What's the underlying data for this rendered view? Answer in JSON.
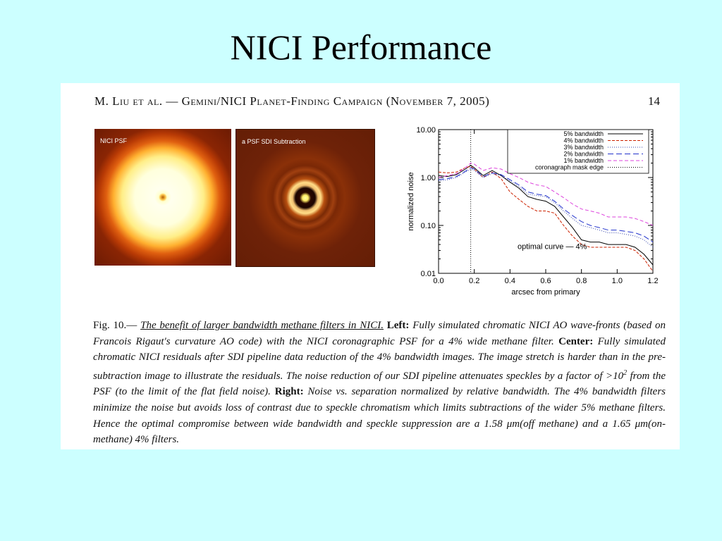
{
  "slide": {
    "title": "NICI Performance"
  },
  "paper": {
    "running_head": "M. Liu et al. — Gemini/NICI Planet-Finding Campaign (November 7, 2005)",
    "page_number": "14"
  },
  "panels": {
    "left_label": "NICI PSF",
    "center_label": "a PSF SDI Subtraction"
  },
  "caption": {
    "fig": "Fig. 10.—",
    "title": "The benefit of larger bandwidth methane filters in NICI.",
    "left_head": "Left:",
    "left_text": "Fully simulated chromatic NICI AO wave-fronts (based on Francois Rigaut's curvature AO code) with the NICI coronagraphic PSF for a 4% wide methane filter.",
    "center_head": "Center:",
    "center_text": "Fully simulated chromatic NICI residuals after SDI pipeline data reduction of the 4% bandwidth images. The image stretch is harder than in the pre-subtraction image to illustrate the residuals. The noise reduction of our SDI pipeline attenuates speckles by a factor of",
    "center_factor_base": ">10",
    "center_factor_exp": "2",
    "center_text_2": "from the PSF (to the limit of the flat field noise).",
    "right_head": "Right:",
    "right_text": "Noise vs. separation normalized by relative bandwidth. The 4% bandwidth filters minimize the noise but avoids loss of contrast due to speckle chromatism which limits subtractions of the wider 5% methane filters. Hence the optimal compromise between wide bandwidth and speckle suppression are a 1.58 μm(off methane) and a 1.65 μm(on-methane) 4% filters."
  },
  "chart_data": {
    "type": "line",
    "xlabel": "arcsec from primary",
    "ylabel": "normalized noise",
    "xlim": [
      0.0,
      1.2
    ],
    "ylim": [
      0.01,
      10.0
    ],
    "yscale": "log",
    "xticks": [
      "0.0",
      "0.2",
      "0.4",
      "0.6",
      "0.8",
      "1.0",
      "1.2"
    ],
    "yticks": [
      {
        "value": 10.0,
        "label": "10.00"
      },
      {
        "value": 1.0,
        "label": "1.00"
      },
      {
        "value": 0.1,
        "label": "0.10"
      },
      {
        "value": 0.01,
        "label": "0.01"
      }
    ],
    "legend_position": "top-right",
    "mask_edge_x": 0.18,
    "annotation": "optimal curve — 4%",
    "x": [
      0.0,
      0.05,
      0.1,
      0.15,
      0.18,
      0.2,
      0.25,
      0.3,
      0.35,
      0.4,
      0.45,
      0.5,
      0.55,
      0.6,
      0.65,
      0.7,
      0.75,
      0.8,
      0.85,
      0.9,
      0.95,
      1.0,
      1.05,
      1.1,
      1.15,
      1.2
    ],
    "series": [
      {
        "name": "5% bandwidth",
        "color": "#000000",
        "dash": "",
        "values": [
          1.1,
          1.05,
          1.15,
          1.5,
          1.8,
          1.6,
          1.1,
          1.4,
          1.1,
          0.8,
          0.6,
          0.4,
          0.35,
          0.32,
          0.25,
          0.15,
          0.09,
          0.05,
          0.045,
          0.045,
          0.04,
          0.04,
          0.04,
          0.035,
          0.025,
          0.015
        ]
      },
      {
        "name": "4% bandwidth",
        "color": "#cc2200",
        "dash": "4,2",
        "values": [
          1.3,
          1.25,
          1.3,
          1.6,
          1.7,
          1.5,
          1.0,
          1.3,
          0.95,
          0.5,
          0.35,
          0.25,
          0.2,
          0.2,
          0.18,
          0.1,
          0.06,
          0.04,
          0.035,
          0.035,
          0.035,
          0.035,
          0.035,
          0.03,
          0.02,
          0.011
        ]
      },
      {
        "name": "3% bandwidth",
        "color": "#3344aa",
        "dash": "1,2",
        "values": [
          0.85,
          0.9,
          1.0,
          1.3,
          1.5,
          1.4,
          1.0,
          1.2,
          1.1,
          0.85,
          0.65,
          0.45,
          0.42,
          0.4,
          0.3,
          0.2,
          0.14,
          0.1,
          0.09,
          0.08,
          0.07,
          0.07,
          0.065,
          0.06,
          0.05,
          0.035
        ]
      },
      {
        "name": "2% bandwidth",
        "color": "#2233cc",
        "dash": "8,4",
        "values": [
          0.9,
          0.95,
          1.05,
          1.35,
          1.6,
          1.5,
          1.05,
          1.25,
          1.15,
          0.9,
          0.7,
          0.5,
          0.45,
          0.42,
          0.32,
          0.22,
          0.16,
          0.12,
          0.1,
          0.09,
          0.08,
          0.08,
          0.075,
          0.07,
          0.06,
          0.045
        ]
      },
      {
        "name": "1% bandwidth",
        "color": "#dd44dd",
        "dash": "5,3",
        "values": [
          1.0,
          1.1,
          1.2,
          1.6,
          2.0,
          1.9,
          1.4,
          1.6,
          1.5,
          1.2,
          1.0,
          0.8,
          0.7,
          0.65,
          0.5,
          0.38,
          0.28,
          0.22,
          0.2,
          0.18,
          0.15,
          0.15,
          0.15,
          0.14,
          0.12,
          0.1
        ]
      }
    ],
    "mask_edge_legend": "coronagraph mask edge"
  }
}
